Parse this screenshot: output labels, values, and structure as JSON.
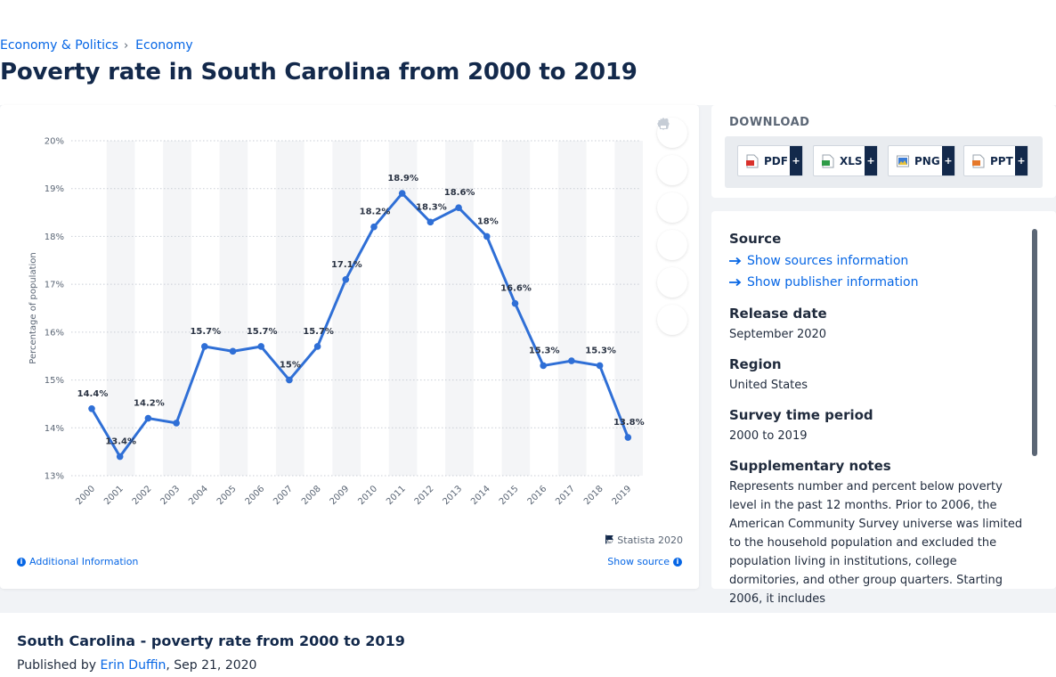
{
  "breadcrumb": {
    "parent": "Economy & Politics",
    "separator": "›",
    "current": "Economy"
  },
  "title": "Poverty rate in South Carolina from 2000 to 2019",
  "chart_data": {
    "type": "line",
    "title": "",
    "xlabel": "",
    "ylabel": "Percentage of population",
    "categories": [
      "2000",
      "2001",
      "2002",
      "2003",
      "2004",
      "2005",
      "2006",
      "2007",
      "2008",
      "2009",
      "2010",
      "2011",
      "2012",
      "2013",
      "2014",
      "2015",
      "2016",
      "2017",
      "2018",
      "2019"
    ],
    "series": [
      {
        "values": [
          14.4,
          13.4,
          14.2,
          14.1,
          15.7,
          15.6,
          15.7,
          15.0,
          15.7,
          17.1,
          18.2,
          18.9,
          18.3,
          18.6,
          18.0,
          16.6,
          15.3,
          15.4,
          15.3,
          13.8
        ]
      }
    ],
    "data_labels": [
      "14.4%",
      "13.4%",
      "14.2%",
      "",
      "15.7%",
      "",
      "15.7%",
      "15%",
      "15.7%",
      "17.1%",
      "18.2%",
      "18.9%",
      "18.3%",
      "18.6%",
      "18%",
      "16.6%",
      "15.3%",
      "",
      "15.3%",
      "13.8%"
    ],
    "yticks": [
      13,
      14,
      15,
      16,
      17,
      18,
      19,
      20
    ],
    "ytick_labels": [
      "13%",
      "14%",
      "15%",
      "16%",
      "17%",
      "18%",
      "19%",
      "20%"
    ],
    "ylim": [
      13,
      20
    ],
    "grid": true,
    "line_color": "#2f6fd6"
  },
  "toolbar": {
    "items": [
      {
        "name": "favorite-star-icon"
      },
      {
        "name": "notification-bell-icon"
      },
      {
        "name": "settings-gear-icon"
      },
      {
        "name": "share-icon"
      },
      {
        "name": "quote-icon"
      },
      {
        "name": "print-icon"
      }
    ]
  },
  "chart_footer": {
    "copyright": "© Statista 2020",
    "additional_info": "Additional Information",
    "show_source": "Show source"
  },
  "download": {
    "title": "DOWNLOAD",
    "buttons": [
      {
        "label": "PDF",
        "color": "#d9312b"
      },
      {
        "label": "XLS",
        "color": "#2e9b47"
      },
      {
        "label": "PNG",
        "color": "#3a7bd5"
      },
      {
        "label": "PPT",
        "color": "#e5782a"
      }
    ],
    "plus": "+"
  },
  "meta": {
    "source_heading": "Source",
    "show_sources": "Show sources information",
    "show_publisher": "Show publisher information",
    "release_heading": "Release date",
    "release_value": "September 2020",
    "region_heading": "Region",
    "region_value": "United States",
    "survey_heading": "Survey time period",
    "survey_value": "2000 to 2019",
    "notes_heading": "Supplementary notes",
    "notes_value": "Represents number and percent below poverty level in the past 12 months. Prior to 2006, the American Community Survey universe was limited to the household population and excluded the population living in institutions, college dormitories, and other group quarters. Starting 2006, it includes"
  },
  "bottom": {
    "title": "South Carolina - poverty rate from 2000 to 2019",
    "published_prefix": "Published by",
    "author": "Erin Duffin",
    "date": ", Sep 21, 2020"
  }
}
